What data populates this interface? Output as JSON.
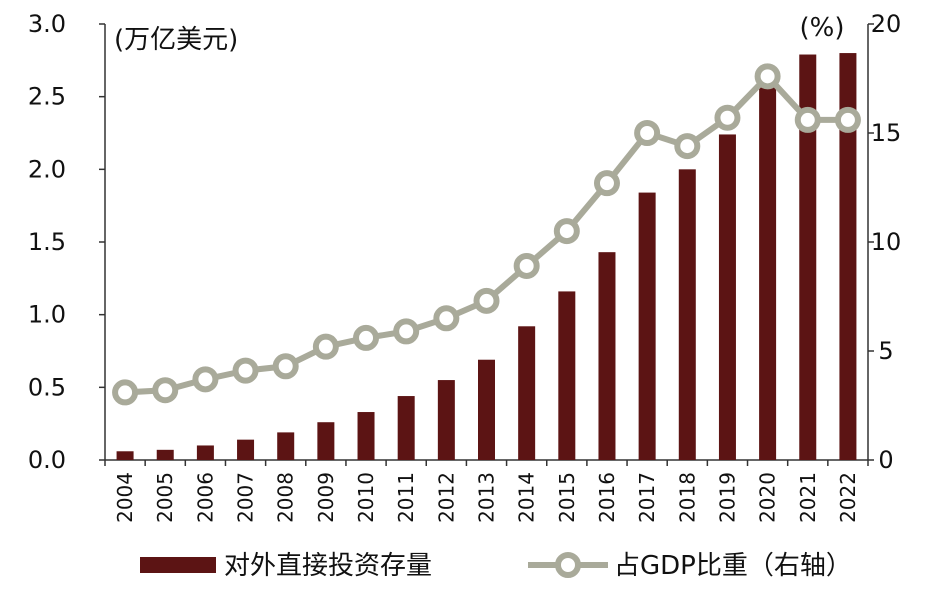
{
  "chart_data": {
    "type": "bar+line",
    "categories": [
      "2004",
      "2005",
      "2006",
      "2007",
      "2008",
      "2009",
      "2010",
      "2011",
      "2012",
      "2013",
      "2014",
      "2015",
      "2016",
      "2017",
      "2018",
      "2019",
      "2020",
      "2021",
      "2022"
    ],
    "series": [
      {
        "name": "对外直接投资存量",
        "type": "bar",
        "axis": "left",
        "color": "#5c1414",
        "values": [
          0.06,
          0.07,
          0.1,
          0.14,
          0.19,
          0.26,
          0.33,
          0.44,
          0.55,
          0.69,
          0.92,
          1.16,
          1.43,
          1.84,
          2.0,
          2.24,
          2.58,
          2.79,
          2.8
        ]
      },
      {
        "name": "占GDP比重（右轴）",
        "type": "line",
        "axis": "right",
        "color": "#a9aa9a",
        "values": [
          3.1,
          3.2,
          3.7,
          4.1,
          4.3,
          5.2,
          5.6,
          5.9,
          6.5,
          7.3,
          8.9,
          10.5,
          12.7,
          15.0,
          14.4,
          15.7,
          17.6,
          15.6,
          15.6
        ]
      }
    ],
    "left_axis": {
      "unit_label": "(万亿美元)",
      "ylim": [
        0,
        3.0
      ],
      "ticks": [
        0,
        0.5,
        1.0,
        1.5,
        2.0,
        2.5,
        3.0
      ],
      "tick_labels": [
        "0.0",
        "0.5",
        "1.0",
        "1.5",
        "2.0",
        "2.5",
        "3.0"
      ]
    },
    "right_axis": {
      "unit_label": "(%)",
      "ylim": [
        0,
        20
      ],
      "ticks": [
        0,
        5,
        10,
        15,
        20
      ],
      "tick_labels": [
        "0",
        "5",
        "10",
        "15",
        "20"
      ]
    },
    "grid": false,
    "legend": {
      "position": "bottom",
      "items": [
        "对外直接投资存量",
        "占GDP比重（右轴）"
      ]
    }
  }
}
